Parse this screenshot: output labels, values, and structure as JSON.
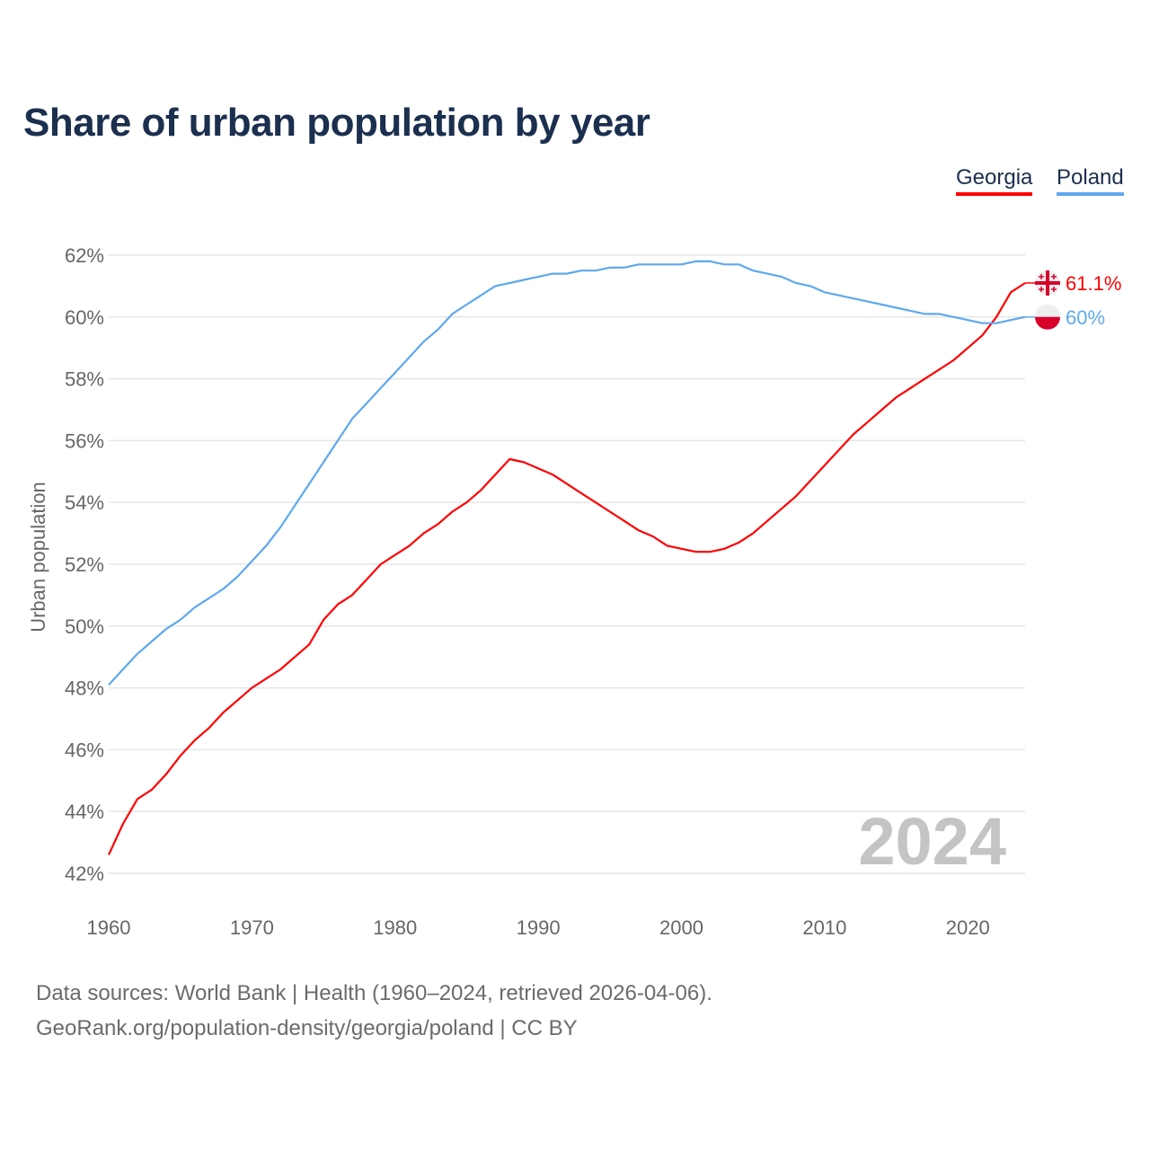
{
  "chart_data": {
    "type": "line",
    "title": "Share of urban population by year",
    "ylabel": "Urban population",
    "xlabel": "",
    "ylim": [
      42,
      62
    ],
    "xlim": [
      1960,
      2024
    ],
    "yticks": [
      "42%",
      "44%",
      "46%",
      "48%",
      "50%",
      "52%",
      "54%",
      "56%",
      "58%",
      "60%",
      "62%"
    ],
    "ytick_values": [
      42,
      44,
      46,
      48,
      50,
      52,
      54,
      56,
      58,
      60,
      62
    ],
    "xticks": [
      "1960",
      "1970",
      "1980",
      "1990",
      "2000",
      "2010",
      "2020"
    ],
    "xtick_values": [
      1960,
      1970,
      1980,
      1990,
      2000,
      2010,
      2020
    ],
    "grid": true,
    "legend_placement": "top-right",
    "year_watermark": "2024",
    "x": [
      1960,
      1961,
      1962,
      1963,
      1964,
      1965,
      1966,
      1967,
      1968,
      1969,
      1970,
      1971,
      1972,
      1973,
      1974,
      1975,
      1976,
      1977,
      1978,
      1979,
      1980,
      1981,
      1982,
      1983,
      1984,
      1985,
      1986,
      1987,
      1988,
      1989,
      1990,
      1991,
      1992,
      1993,
      1994,
      1995,
      1996,
      1997,
      1998,
      1999,
      2000,
      2001,
      2002,
      2003,
      2004,
      2005,
      2006,
      2007,
      2008,
      2009,
      2010,
      2011,
      2012,
      2013,
      2014,
      2015,
      2016,
      2017,
      2018,
      2019,
      2020,
      2021,
      2022,
      2023,
      2024
    ],
    "series": [
      {
        "name": "Georgia",
        "color": "#ff0000",
        "end_label": "61.1%",
        "flag": "georgia-flag",
        "values": [
          42.6,
          43.6,
          44.4,
          44.7,
          45.2,
          45.8,
          46.3,
          46.7,
          47.2,
          47.6,
          48.0,
          48.3,
          48.6,
          49.0,
          49.4,
          50.2,
          50.7,
          51.0,
          51.5,
          52.0,
          52.3,
          52.6,
          53.0,
          53.3,
          53.7,
          54.0,
          54.4,
          54.9,
          55.4,
          55.3,
          55.1,
          54.9,
          54.6,
          54.3,
          54.0,
          53.7,
          53.4,
          53.1,
          52.9,
          52.6,
          52.5,
          52.4,
          52.4,
          52.5,
          52.7,
          53.0,
          53.4,
          53.8,
          54.2,
          54.7,
          55.2,
          55.7,
          56.2,
          56.6,
          57.0,
          57.4,
          57.7,
          58.0,
          58.3,
          58.6,
          59.0,
          59.4,
          60.0,
          60.8,
          61.1
        ]
      },
      {
        "name": "Poland",
        "color": "#5ea8ee",
        "end_label": "60%",
        "flag": "poland-flag",
        "values": [
          48.1,
          48.6,
          49.1,
          49.5,
          49.9,
          50.2,
          50.6,
          50.9,
          51.2,
          51.6,
          52.1,
          52.6,
          53.2,
          53.9,
          54.6,
          55.3,
          56.0,
          56.7,
          57.2,
          57.7,
          58.2,
          58.7,
          59.2,
          59.6,
          60.1,
          60.4,
          60.7,
          61.0,
          61.1,
          61.2,
          61.3,
          61.4,
          61.4,
          61.5,
          61.5,
          61.6,
          61.6,
          61.7,
          61.7,
          61.7,
          61.7,
          61.8,
          61.8,
          61.7,
          61.7,
          61.5,
          61.4,
          61.3,
          61.1,
          61.0,
          60.8,
          60.7,
          60.6,
          60.5,
          60.4,
          60.3,
          60.2,
          60.1,
          60.1,
          60.0,
          59.9,
          59.8,
          59.8,
          59.9,
          60.0
        ]
      }
    ]
  },
  "footer": {
    "line1": "Data sources: World Bank | Health (1960–2024, retrieved 2026-04-06).",
    "line2": "GeoRank.org/population-density/georgia/poland | CC BY"
  }
}
